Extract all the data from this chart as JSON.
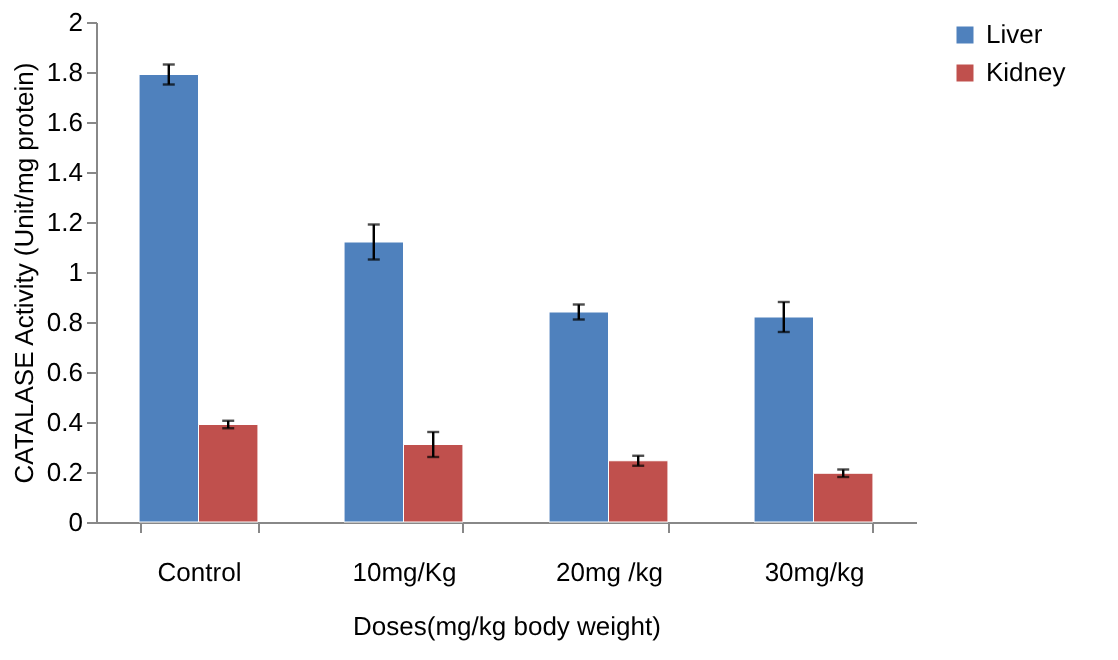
{
  "chart_data": {
    "type": "bar",
    "xlabel": "Doses(mg/kg body weight)",
    "ylabel": "CATALASE Activity (Unit/mg protein)",
    "categories": [
      "Control",
      "10mg/Kg",
      "20mg /kg",
      "30mg/kg"
    ],
    "series": [
      {
        "name": "Liver",
        "color": "#4f81bd",
        "values": [
          1.79,
          1.12,
          0.84,
          0.82
        ],
        "errors": [
          0.04,
          0.07,
          0.03,
          0.06
        ]
      },
      {
        "name": "Kidney",
        "color": "#c0504d",
        "values": [
          0.39,
          0.31,
          0.245,
          0.195
        ],
        "errors": [
          0.015,
          0.05,
          0.02,
          0.015
        ]
      }
    ],
    "ylim": [
      0,
      2
    ],
    "yticks": [
      0,
      0.2,
      0.4,
      0.6,
      0.8,
      1,
      1.2,
      1.4,
      1.6,
      1.8,
      2
    ],
    "grid": false,
    "legend": "right"
  }
}
